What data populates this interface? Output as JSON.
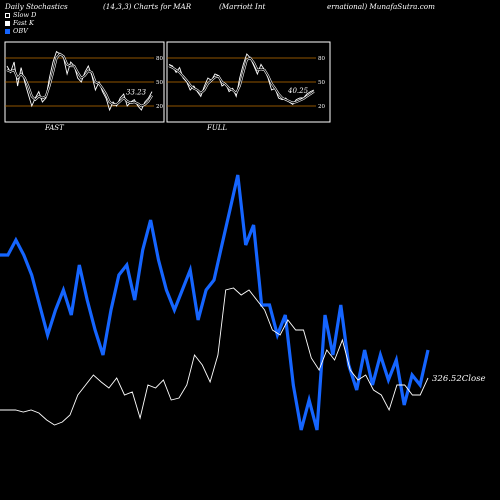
{
  "header": {
    "left": "Daily Stochastics",
    "mid": "(14,3,3) Charts for MAR",
    "right1": "(Marriott Int",
    "right2": "ernational) MunafaSutra.com"
  },
  "legend": [
    {
      "label": "Slow  D",
      "color": "#000000"
    },
    {
      "label": "Fast K",
      "color": "#ffffff"
    },
    {
      "label": "OBV",
      "color": "#1565ff"
    }
  ],
  "chart_data": [
    {
      "type": "line",
      "panel": "FAST",
      "yticks": [
        20,
        50,
        80
      ],
      "ylim": [
        0,
        100
      ],
      "value_label": "33.23",
      "series": [
        {
          "name": "Fast K",
          "values": [
            70,
            62,
            75,
            45,
            68,
            50,
            35,
            20,
            30,
            38,
            25,
            30,
            55,
            75,
            88,
            85,
            80,
            60,
            75,
            70,
            55,
            50,
            62,
            70,
            58,
            40,
            50,
            38,
            30,
            15,
            25,
            20,
            30,
            35,
            20,
            25,
            28,
            20,
            15,
            25,
            30,
            38
          ]
        },
        {
          "name": "Slow  D",
          "values": [
            65,
            63,
            65,
            55,
            60,
            55,
            45,
            32,
            28,
            32,
            30,
            32,
            45,
            62,
            80,
            85,
            82,
            72,
            70,
            70,
            62,
            55,
            58,
            64,
            62,
            50,
            48,
            42,
            35,
            25,
            22,
            22,
            26,
            30,
            26,
            24,
            25,
            23,
            20,
            22,
            26,
            33
          ]
        }
      ]
    },
    {
      "type": "line",
      "panel": "FULL",
      "yticks": [
        20,
        50,
        80
      ],
      "ylim": [
        0,
        100
      ],
      "value_label": "40.25",
      "series": [
        {
          "name": "Fast K",
          "values": [
            72,
            70,
            62,
            68,
            55,
            50,
            40,
            45,
            38,
            32,
            45,
            55,
            52,
            60,
            58,
            45,
            48,
            38,
            42,
            32,
            55,
            72,
            85,
            80,
            70,
            60,
            72,
            65,
            55,
            40,
            42,
            30,
            28,
            30,
            25,
            22,
            28,
            30,
            30,
            35,
            38,
            40
          ]
        },
        {
          "name": "Slow  D",
          "values": [
            70,
            68,
            65,
            62,
            57,
            52,
            46,
            42,
            40,
            36,
            40,
            48,
            52,
            56,
            57,
            50,
            47,
            42,
            40,
            36,
            45,
            62,
            78,
            80,
            74,
            65,
            66,
            65,
            58,
            48,
            42,
            35,
            30,
            28,
            26,
            24,
            25,
            27,
            29,
            32,
            35,
            38
          ]
        }
      ]
    },
    {
      "type": "line",
      "panel": "main",
      "close_label": "326.52",
      "close_suffix": "Close",
      "series": [
        {
          "name": "OBV",
          "values": [
            255,
            255,
            240,
            255,
            275,
            305,
            335,
            310,
            290,
            315,
            265,
            300,
            330,
            355,
            310,
            275,
            265,
            300,
            250,
            220,
            260,
            290,
            310,
            290,
            270,
            320,
            290,
            280,
            245,
            210,
            175,
            245,
            225,
            305,
            305,
            335,
            315,
            385,
            430,
            400,
            430,
            315,
            355,
            305,
            365,
            390,
            350,
            385,
            355,
            380,
            360,
            405,
            375,
            385,
            350
          ]
        },
        {
          "name": "Close",
          "values": [
            410,
            410,
            410,
            412,
            410,
            413,
            420,
            425,
            422,
            415,
            395,
            385,
            375,
            382,
            388,
            378,
            395,
            392,
            418,
            385,
            388,
            380,
            400,
            398,
            385,
            355,
            365,
            382,
            355,
            290,
            288,
            295,
            290,
            300,
            310,
            330,
            335,
            320,
            330,
            330,
            358,
            370,
            350,
            360,
            340,
            370,
            380,
            375,
            390,
            395,
            410,
            385,
            385,
            395,
            395,
            378
          ]
        }
      ]
    }
  ]
}
